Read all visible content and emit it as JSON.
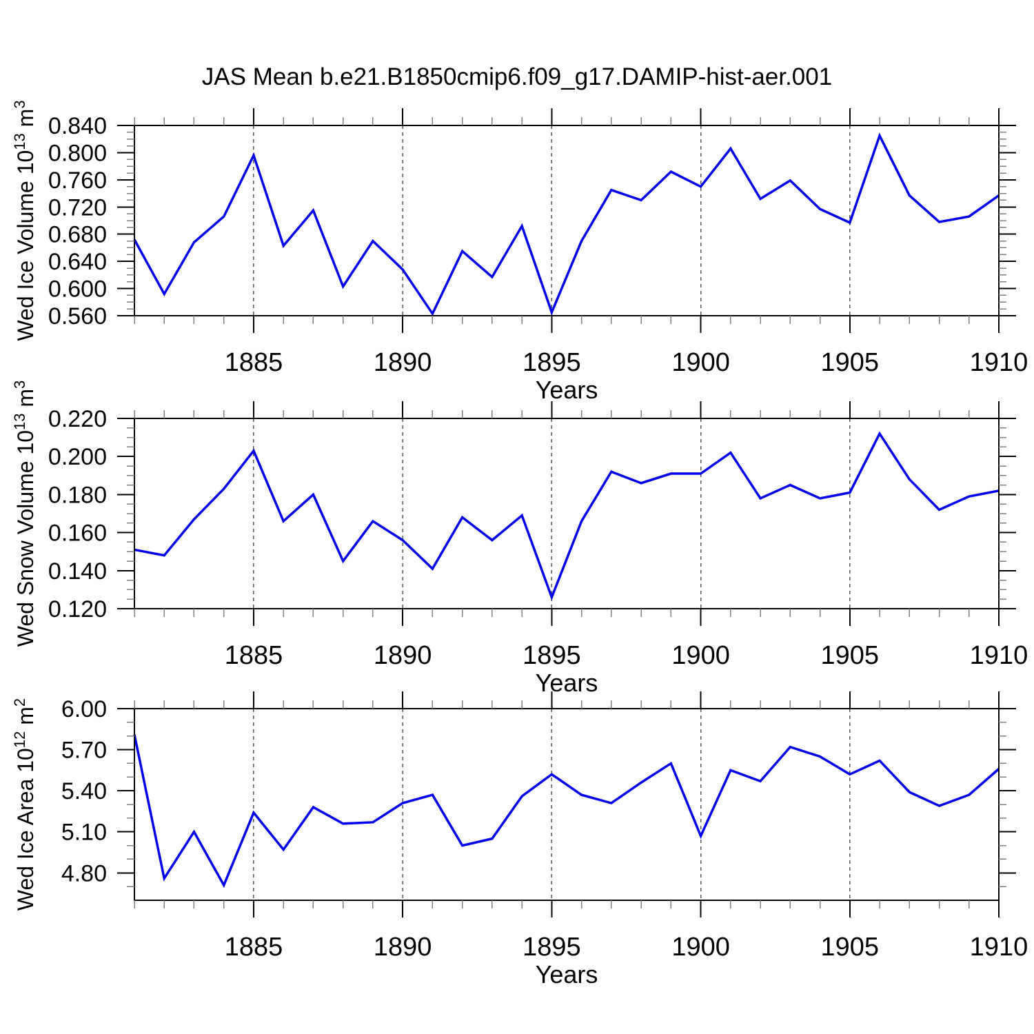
{
  "title": "JAS Mean b.e21.B1850cmip6.f09_g17.DAMIP-hist-aer.001",
  "colors": {
    "line": "#0000EE",
    "grid": "#555555",
    "frame": "#000000",
    "minor_tick": "#808080",
    "text": "#000000",
    "background": "#FFFFFF"
  },
  "x_axis": {
    "label": "Years",
    "start": 1881,
    "end": 1910,
    "major_ticks": [
      1885,
      1890,
      1895,
      1900,
      1905,
      1910
    ],
    "tick_labels": [
      "1885",
      "1890",
      "1895",
      "1900",
      "1905",
      "1910"
    ],
    "minor_step": 1,
    "gridlines": [
      1885,
      1890,
      1895,
      1900,
      1905
    ]
  },
  "chart_data": [
    {
      "type": "line",
      "name": "wed-ice-volume",
      "ylabel": "Wed Ice Volume 10^13 m^3",
      "ylabel_parts": [
        {
          "t": "Wed Ice Volume 10"
        },
        {
          "sup": "13"
        },
        {
          "t": " m"
        },
        {
          "sup": "3"
        }
      ],
      "xlabel": "Years",
      "ylim": [
        0.56,
        0.84
      ],
      "yticks": [
        0.56,
        0.6,
        0.64,
        0.68,
        0.72,
        0.76,
        0.8,
        0.84
      ],
      "ytick_labels": [
        "0.560",
        "0.600",
        "0.640",
        "0.680",
        "0.720",
        "0.760",
        "0.800",
        "0.840"
      ],
      "yminor": 0.01,
      "x": [
        1881,
        1882,
        1883,
        1884,
        1885,
        1886,
        1887,
        1888,
        1889,
        1890,
        1891,
        1892,
        1893,
        1894,
        1895,
        1896,
        1897,
        1898,
        1899,
        1900,
        1901,
        1902,
        1903,
        1904,
        1905,
        1906,
        1907,
        1908,
        1909,
        1910
      ],
      "values": [
        0.672,
        0.592,
        0.668,
        0.706,
        0.796,
        0.663,
        0.715,
        0.603,
        0.67,
        0.628,
        0.563,
        0.655,
        0.617,
        0.692,
        0.565,
        0.67,
        0.745,
        0.73,
        0.772,
        0.75,
        0.806,
        0.732,
        0.759,
        0.717,
        0.697,
        0.825,
        0.737,
        0.698,
        0.706,
        0.737
      ]
    },
    {
      "type": "line",
      "name": "wed-snow-volume",
      "ylabel": "Wed Snow Volume 10^13 m^3",
      "ylabel_parts": [
        {
          "t": "Wed Snow Volume 10"
        },
        {
          "sup": "13"
        },
        {
          "t": " m"
        },
        {
          "sup": "3"
        }
      ],
      "xlabel": "Years",
      "ylim": [
        0.12,
        0.22
      ],
      "yticks": [
        0.12,
        0.14,
        0.16,
        0.18,
        0.2,
        0.22
      ],
      "ytick_labels": [
        "0.120",
        "0.140",
        "0.160",
        "0.180",
        "0.200",
        "0.220"
      ],
      "yminor": 0.005,
      "x": [
        1881,
        1882,
        1883,
        1884,
        1885,
        1886,
        1887,
        1888,
        1889,
        1890,
        1891,
        1892,
        1893,
        1894,
        1895,
        1896,
        1897,
        1898,
        1899,
        1900,
        1901,
        1902,
        1903,
        1904,
        1905,
        1906,
        1907,
        1908,
        1909,
        1910
      ],
      "values": [
        0.151,
        0.148,
        0.167,
        0.183,
        0.203,
        0.166,
        0.18,
        0.145,
        0.166,
        0.156,
        0.141,
        0.168,
        0.156,
        0.169,
        0.126,
        0.166,
        0.192,
        0.186,
        0.191,
        0.191,
        0.202,
        0.178,
        0.185,
        0.178,
        0.181,
        0.212,
        0.188,
        0.172,
        0.179,
        0.182
      ]
    },
    {
      "type": "line",
      "name": "wed-ice-area",
      "ylabel": "Wed Ice Area 10^12 m^2",
      "ylabel_parts": [
        {
          "t": "Wed Ice Area 10"
        },
        {
          "sup": "12"
        },
        {
          "t": " m"
        },
        {
          "sup": "2"
        }
      ],
      "xlabel": "Years",
      "ylim": [
        4.6,
        6.0
      ],
      "yticks": [
        4.8,
        5.1,
        5.4,
        5.7,
        6.0
      ],
      "ytick_labels": [
        "4.80",
        "5.10",
        "5.40",
        "5.70",
        "6.00"
      ],
      "yminor": 0.1,
      "x": [
        1881,
        1882,
        1883,
        1884,
        1885,
        1886,
        1887,
        1888,
        1889,
        1890,
        1891,
        1892,
        1893,
        1894,
        1895,
        1896,
        1897,
        1898,
        1899,
        1900,
        1901,
        1902,
        1903,
        1904,
        1905,
        1906,
        1907,
        1908,
        1909,
        1910
      ],
      "values": [
        5.81,
        4.76,
        5.1,
        4.71,
        5.24,
        4.97,
        5.28,
        5.16,
        5.17,
        5.31,
        5.37,
        5.0,
        5.05,
        5.36,
        5.52,
        5.37,
        5.31,
        5.46,
        5.6,
        5.07,
        5.55,
        5.47,
        5.72,
        5.65,
        5.52,
        5.62,
        5.39,
        5.29,
        5.37,
        5.56
      ]
    }
  ]
}
